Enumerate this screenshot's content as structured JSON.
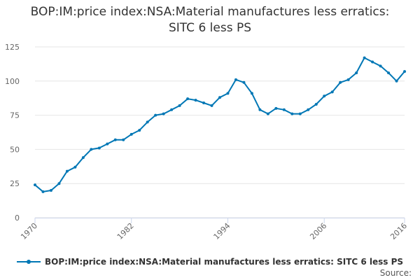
{
  "title_line1": "BOP:IM:price index:NSA:Material manufactures less erratics:",
  "title_line2": "SITC 6 less PS",
  "source_label": "Source:",
  "colors": {
    "series": "#0077b5",
    "grid": "#e6e6e6",
    "axis": "#ccd6eb"
  },
  "chart_data": {
    "type": "line",
    "title": "BOP:IM:price index:NSA:Material manufactures less erratics: SITC 6 less PS",
    "xlabel": "",
    "ylabel": "",
    "xlim": [
      1970,
      2016
    ],
    "ylim": [
      0,
      125
    ],
    "x_ticks": [
      "1970",
      "1982",
      "1994",
      "2006",
      "2016"
    ],
    "y_ticks": [
      "0",
      "25",
      "50",
      "75",
      "100",
      "125"
    ],
    "grid": true,
    "legend": "bottom",
    "x": [
      1970,
      1971,
      1972,
      1973,
      1974,
      1975,
      1976,
      1977,
      1978,
      1979,
      1980,
      1981,
      1982,
      1983,
      1984,
      1985,
      1986,
      1987,
      1988,
      1989,
      1990,
      1991,
      1992,
      1993,
      1994,
      1995,
      1996,
      1997,
      1998,
      1999,
      2000,
      2001,
      2002,
      2003,
      2004,
      2005,
      2006,
      2007,
      2008,
      2009,
      2010,
      2011,
      2012,
      2013,
      2014,
      2015,
      2016
    ],
    "series": [
      {
        "name": "BOP:IM:price index:NSA:Material manufactures less erratics: SITC 6 less PS",
        "values": [
          24,
          19,
          20,
          25,
          34,
          37,
          44,
          50,
          51,
          54,
          57,
          57,
          61,
          64,
          70,
          75,
          76,
          79,
          82,
          87,
          86,
          84,
          82,
          88,
          91,
          101,
          99,
          91,
          79,
          76,
          80,
          79,
          76,
          76,
          79,
          83,
          89,
          92,
          99,
          101,
          106,
          117,
          114,
          111,
          106,
          100,
          107
        ]
      }
    ]
  }
}
